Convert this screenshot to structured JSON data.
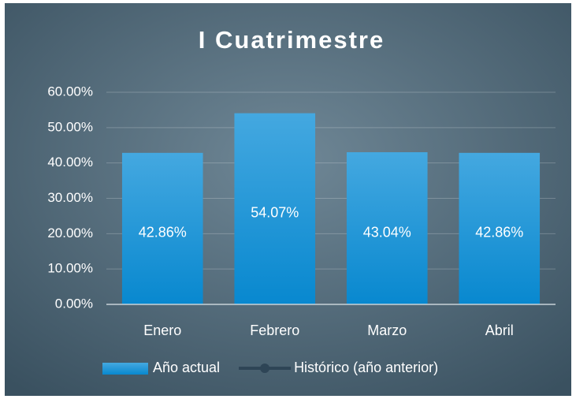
{
  "chart_data": {
    "type": "bar",
    "title": "I Cuatrimestre",
    "categories": [
      "Enero",
      "Febrero",
      "Marzo",
      "Abril"
    ],
    "series": [
      {
        "name": "Año actual",
        "color": "#1a95d8",
        "values": [
          42.86,
          54.07,
          43.04,
          42.86
        ],
        "value_labels": [
          "42.86%",
          "54.07%",
          "43.04%",
          "42.86%"
        ]
      },
      {
        "name": "Histórico (año anterior)",
        "type": "line",
        "color": "#2e4556",
        "values": [
          null,
          null,
          null,
          null
        ]
      }
    ],
    "ylim": [
      0,
      60
    ],
    "yticks": [
      {
        "value": 0,
        "label": "0.00%"
      },
      {
        "value": 10,
        "label": "10.00%"
      },
      {
        "value": 20,
        "label": "20.00%"
      },
      {
        "value": 30,
        "label": "30.00%"
      },
      {
        "value": 40,
        "label": "40.00%"
      },
      {
        "value": 50,
        "label": "50.00%"
      },
      {
        "value": 60,
        "label": "60.00%"
      }
    ],
    "grid": true,
    "legend": "bottom"
  }
}
